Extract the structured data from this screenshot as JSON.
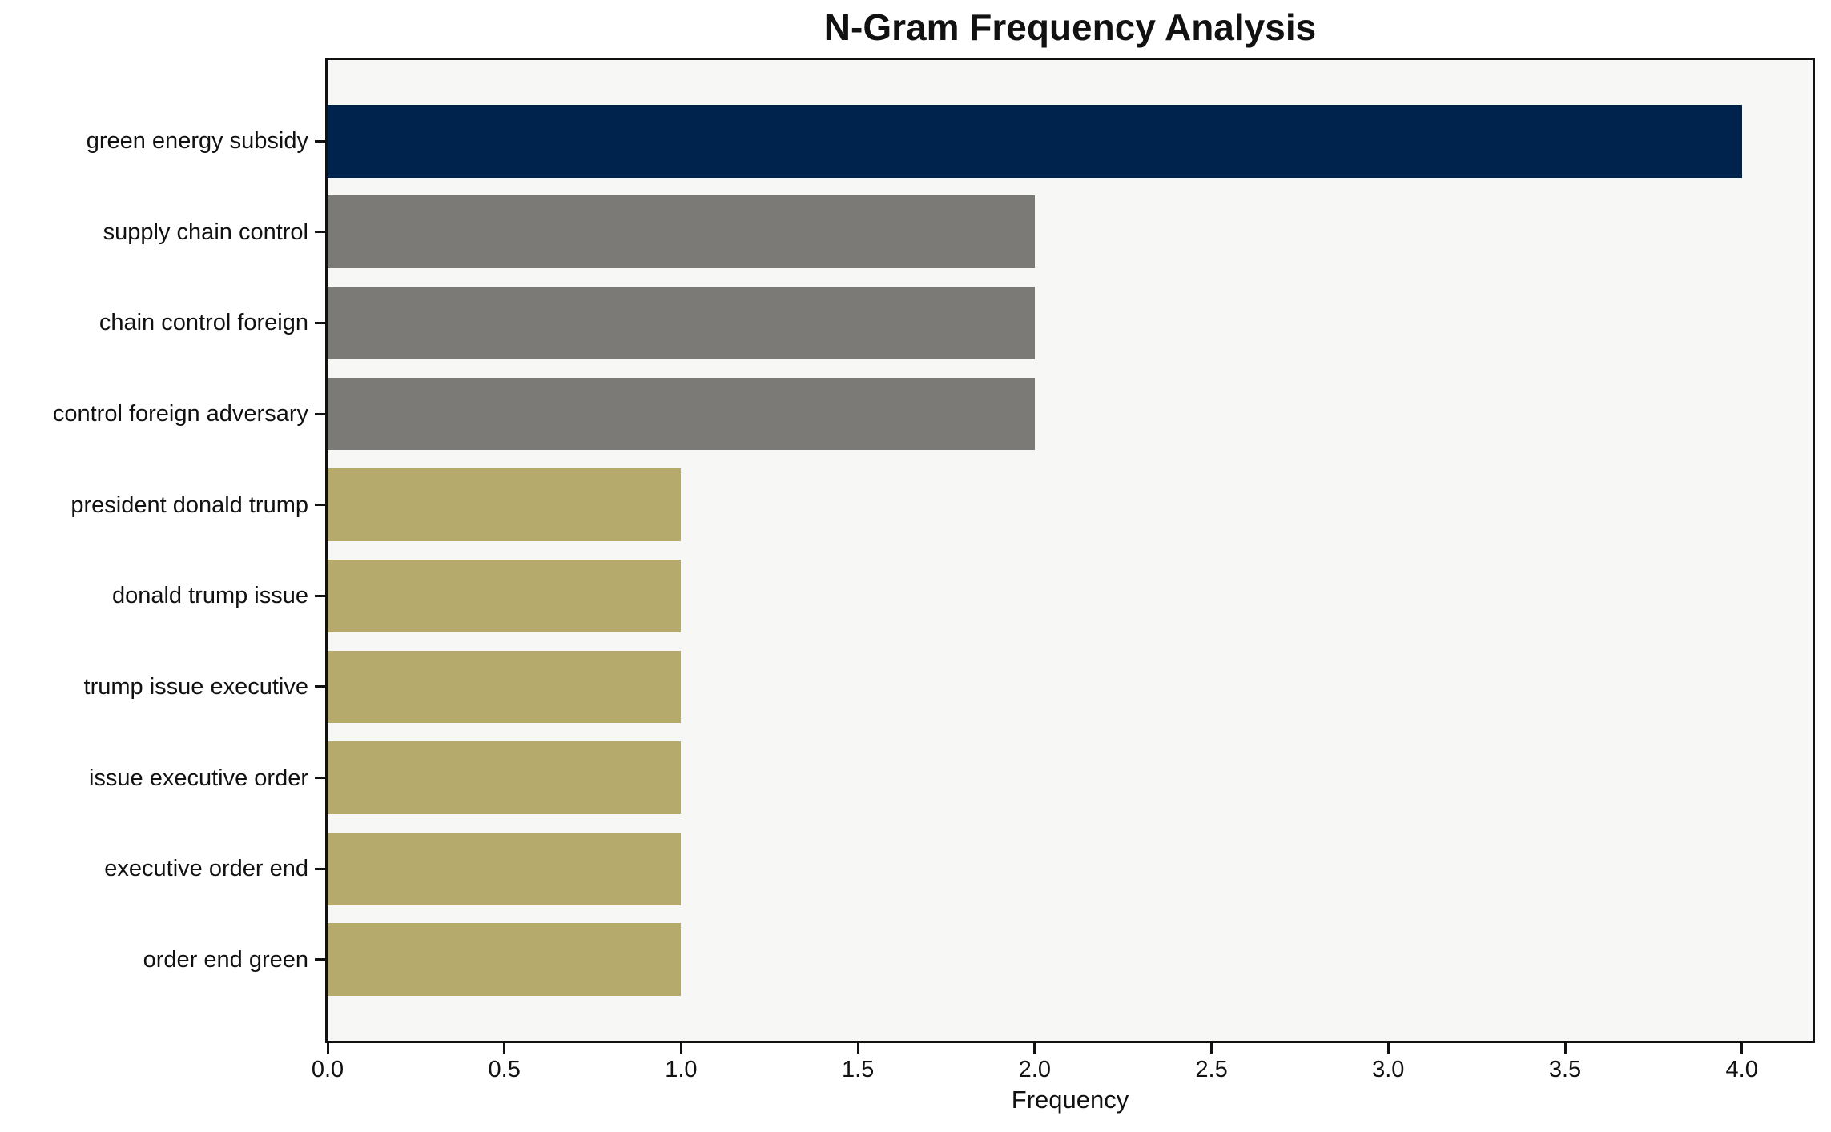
{
  "chart_data": {
    "type": "bar",
    "orientation": "horizontal",
    "title": "N-Gram Frequency Analysis",
    "xlabel": "Frequency",
    "ylabel": "",
    "categories": [
      "green energy subsidy",
      "supply chain control",
      "chain control foreign",
      "control foreign adversary",
      "president donald trump",
      "donald trump issue",
      "trump issue executive",
      "issue executive order",
      "executive order end",
      "order end green"
    ],
    "values": [
      4,
      2,
      2,
      2,
      1,
      1,
      1,
      1,
      1,
      1
    ],
    "bar_colors": [
      "#00234d",
      "#7b7a77",
      "#7b7a77",
      "#7b7a77",
      "#b5aa6b",
      "#b5aa6b",
      "#b5aa6b",
      "#b5aa6b",
      "#b5aa6b",
      "#b5aa6b"
    ],
    "xlim": [
      0,
      4.2
    ],
    "x_tick_values": [
      0,
      0.5,
      1.0,
      1.5,
      2.0,
      2.5,
      3.0,
      3.5,
      4.0
    ],
    "x_tick_labels": [
      "0.0",
      "0.5",
      "1.0",
      "1.5",
      "2.0",
      "2.5",
      "3.0",
      "3.5",
      "4.0"
    ],
    "bar_height_fraction": 0.8,
    "y_margin_units": 0.89,
    "grid": false,
    "legend": null,
    "plot_background": "#f7f7f5",
    "page_background": "#ffffff",
    "axis_color": "#111111",
    "text_color": "#111111"
  }
}
